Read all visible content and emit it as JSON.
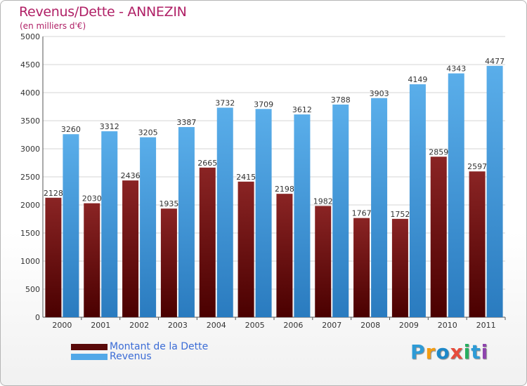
{
  "header": {
    "title": "Revenus/Dette - ANNEZIN",
    "subtitle": "(en milliers d'€)"
  },
  "logo": {
    "text": "Proxiti",
    "letters": [
      "P",
      "r",
      "o",
      "x",
      "i",
      "t",
      "i"
    ],
    "colors": [
      "#2e9bd6",
      "#f39c12",
      "#1e88c8",
      "#e74c3c",
      "#27ae60",
      "#2e9bd6",
      "#8e44ad"
    ]
  },
  "colors": {
    "debt": "#7a1818",
    "debt_dark": "#4a0000",
    "revenue": "#52a8e8",
    "revenue_dark": "#2c7fc2",
    "title": "#b02066",
    "legend_text": "#3b6cd6"
  },
  "chart_data": {
    "type": "bar",
    "title": "Revenus/Dette - ANNEZIN",
    "subtitle": "(en milliers d'€)",
    "categories": [
      "2000",
      "2001",
      "2002",
      "2003",
      "2004",
      "2005",
      "2006",
      "2007",
      "2008",
      "2009",
      "2010",
      "2011"
    ],
    "series": [
      {
        "name": "Montant de la Dette",
        "values": [
          2128,
          2030,
          2436,
          1935,
          2665,
          2415,
          2198,
          1982,
          1767,
          1752,
          2859,
          2597
        ]
      },
      {
        "name": "Revenus",
        "values": [
          3260,
          3312,
          3205,
          3387,
          3732,
          3709,
          3612,
          3788,
          3903,
          4149,
          4343,
          4477
        ]
      }
    ],
    "ylim": [
      0,
      5000
    ],
    "yticks": [
      0,
      500,
      1000,
      1500,
      2000,
      2500,
      3000,
      3500,
      4000,
      4500,
      5000
    ],
    "grid": true,
    "legend_position": "bottom-left"
  }
}
